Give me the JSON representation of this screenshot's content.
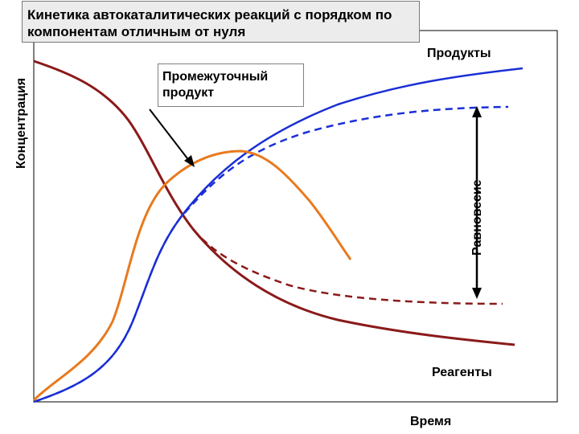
{
  "title": "Кинетика автокаталитических реакций с порядком по компонентам отличным от нуля",
  "y_axis_label": "Концентрация",
  "x_axis_label": "Время",
  "labels": {
    "products": "Продукты",
    "intermediate": "Промежуточный продукт",
    "reagents": "Реагенты",
    "equilibrium": "Равновесие"
  },
  "colors": {
    "reagents": "#8b1a1a",
    "products": "#1a2fd6",
    "intermediate": "#e87a1e",
    "axes": "#000000"
  },
  "curves": [
    {
      "name": "reagents",
      "style": "solid"
    },
    {
      "name": "reagents-equilibrium",
      "style": "dashed"
    },
    {
      "name": "products",
      "style": "solid"
    },
    {
      "name": "products-equilibrium",
      "style": "dashed"
    },
    {
      "name": "intermediate",
      "style": "solid"
    }
  ]
}
